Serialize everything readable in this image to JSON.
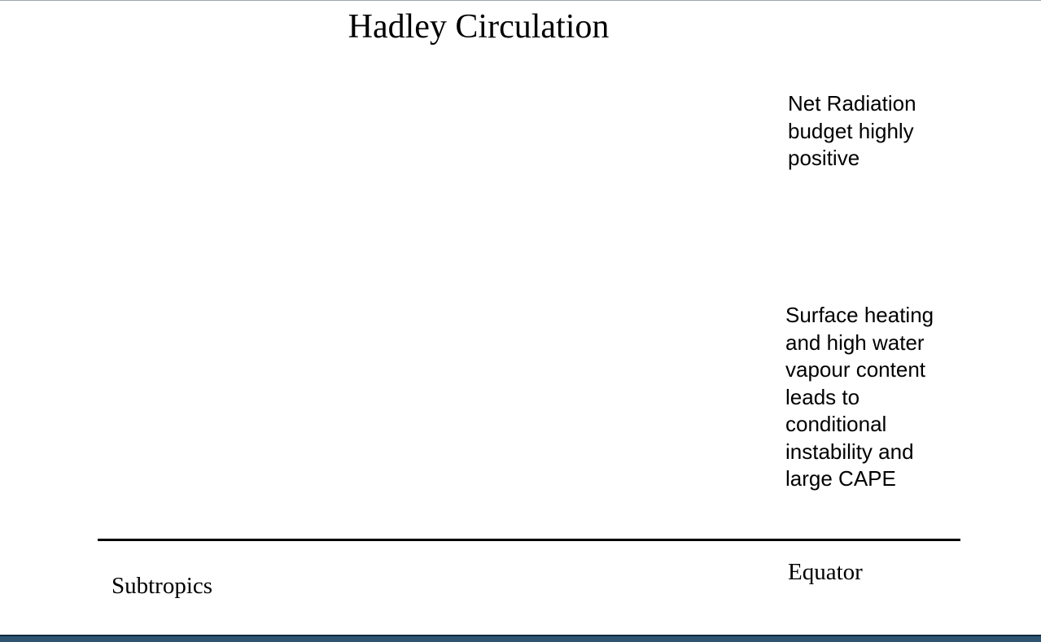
{
  "title": "Hadley Circulation",
  "annotations": {
    "radiation": [
      "Net Radiation",
      "budget highly",
      "positive"
    ],
    "instability": [
      "Surface heating",
      "and high water",
      "vapour content",
      "leads to",
      "conditional",
      "instability and",
      "large CAPE"
    ]
  },
  "labels": {
    "left": "Subtropics",
    "right": "Equator"
  },
  "colors": {
    "background": "#ffffff",
    "text": "#000000",
    "bottom_band": "#2e5470"
  }
}
